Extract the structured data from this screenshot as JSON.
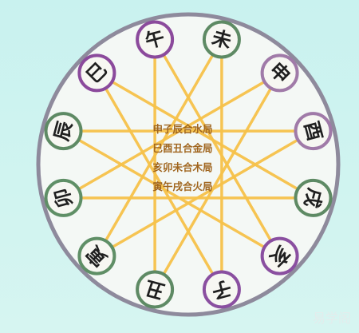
{
  "branches": [
    {
      "char": "午",
      "element": "fire"
    },
    {
      "char": "未",
      "element": "earth"
    },
    {
      "char": "申",
      "element": "metal"
    },
    {
      "char": "酉",
      "element": "metal"
    },
    {
      "char": "戌",
      "element": "earth"
    },
    {
      "char": "亥",
      "element": "water"
    },
    {
      "char": "子",
      "element": "water"
    },
    {
      "char": "丑",
      "element": "earth"
    },
    {
      "char": "寅",
      "element": "wood"
    },
    {
      "char": "卯",
      "element": "wood"
    },
    {
      "char": "辰",
      "element": "earth"
    },
    {
      "char": "巳",
      "element": "fire"
    }
  ],
  "element_colors": {
    "fire": "#8b4a9c",
    "earth": "#5e8a64",
    "metal": "#a07aa8",
    "water": "#8a4fa0",
    "wood": "#5f8f66"
  },
  "center_lines": [
    "申子辰合水局",
    "巳酉丑合金局",
    "亥卯未合木局",
    "寅午戌合火局"
  ],
  "watermark": "易学阁",
  "colors": {
    "ring": "#8e8a9c",
    "disc": "#f4f8f5",
    "star_line": "#f7c24a",
    "center_text": "#a0651e"
  }
}
